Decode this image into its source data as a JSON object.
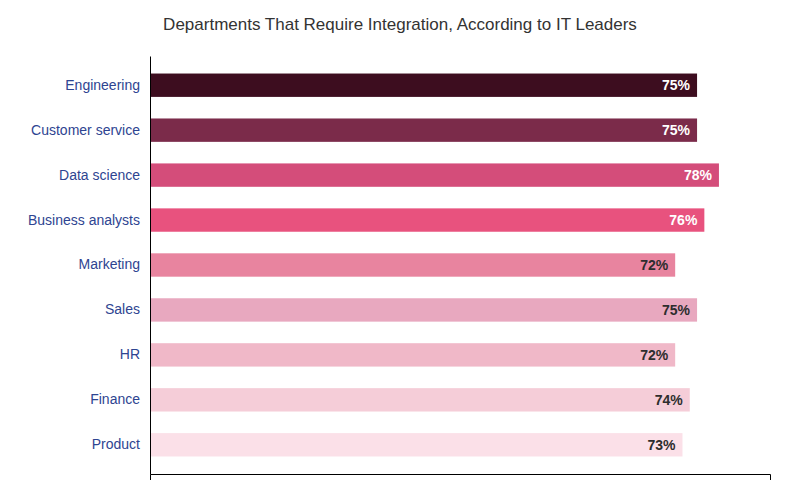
{
  "chart_data": {
    "type": "bar",
    "orientation": "horizontal",
    "title": "Departments That Require Integration, According to IT Leaders",
    "categories": [
      "Engineering",
      "Customer service",
      "Data science",
      "Business analysts",
      "Marketing",
      "Sales",
      "HR",
      "Finance",
      "Product"
    ],
    "values": [
      75,
      75,
      78,
      76,
      72,
      75,
      72,
      74,
      73
    ],
    "value_labels": [
      "75%",
      "75%",
      "78%",
      "76%",
      "72%",
      "75%",
      "72%",
      "74%",
      "73%"
    ],
    "colors": [
      "#3d0d1f",
      "#7b2b4a",
      "#d44d7a",
      "#e8527e",
      "#e8849f",
      "#e8a8bf",
      "#f0b8c8",
      "#f5cdd8",
      "#fbe0e8"
    ],
    "xlim": [
      0,
      85
    ],
    "data_labels": true,
    "tick_labels": "y",
    "grid": false
  }
}
